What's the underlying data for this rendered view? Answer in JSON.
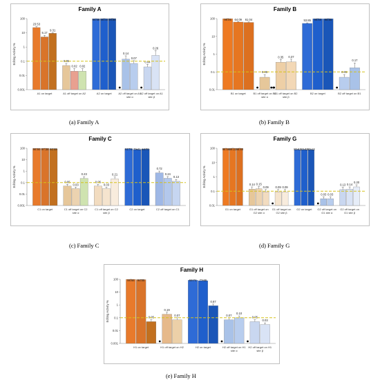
{
  "y_axis_title": "Editing Activity %",
  "y_ticks": [
    "100",
    "10",
    "1",
    "0.1",
    "0.01",
    "0.001"
  ],
  "chart_data": [
    {
      "type": "bar",
      "title": "Family A",
      "caption": "(a)    Family A",
      "ylabel": "Editing Activity %",
      "yscale": "log",
      "ylim": [
        0.001,
        100
      ],
      "ticks": [
        100,
        10,
        1,
        0.1,
        0.01,
        0.001
      ],
      "threshold": 0.1,
      "groups": [
        {
          "label": [
            "A1 on target"
          ],
          "bars": [
            {
              "value": 23.53,
              "label": "23.53",
              "color": "#e87a2b",
              "err": 4
            },
            {
              "value": 5.17,
              "label": "5.17",
              "color": "#d9742a",
              "err": 1.5
            },
            {
              "value": 9.31,
              "label": "9.31",
              "color": "#c2701f",
              "err": 1
            }
          ]
        },
        {
          "label": [
            "A1 off target on A2"
          ],
          "bars": [
            {
              "value": 0.05,
              "label": "0.05",
              "color": "#e6c79a",
              "err": 0.02
            },
            {
              "value": 0.02,
              "label": "0.02",
              "color": "#e8a090",
              "err": 0.01
            },
            {
              "value": 0.02,
              "label": "0.02",
              "color": "#cfe3b0",
              "err": 0.01
            }
          ]
        },
        {
          "label": [
            "A2 on target"
          ],
          "bars": [
            {
              "value": 96.69,
              "label": "96.69",
              "color": "#2e6bd6",
              "err": 2
            },
            {
              "value": 99.03,
              "label": "99.03",
              "color": "#1f5fcc",
              "err": 1
            },
            {
              "value": 99.86,
              "label": "99.86",
              "color": "#1a56b8",
              "err": 1
            }
          ]
        },
        {
          "label": [
            "A2 off target on A1",
            "site α"
          ],
          "bars": [
            {
              "value": 0.14,
              "label": "0.14",
              "color": "#a9c2e8",
              "err": 0.1
            },
            {
              "value": 0.07,
              "label": "0.07",
              "color": "#b8cdee",
              "err": 0.04
            }
          ],
          "marker": true
        },
        {
          "label": [
            "A2 off target on A1",
            "site β"
          ],
          "bars": [
            {
              "value": 0.04,
              "label": "0.04",
              "color": "#c9d7f0",
              "err": 0.02
            },
            {
              "value": 0.26,
              "label": "0.26",
              "color": "#d9e3f5",
              "err": 0.3
            }
          ],
          "marker": true
        }
      ]
    },
    {
      "type": "bar",
      "title": "Family B",
      "caption": "(b)    Family B",
      "ylabel": "Editing Activity %",
      "yscale": "log",
      "ylim": [
        0.01,
        100
      ],
      "ticks": [
        100,
        10,
        1,
        0.1,
        0.01
      ],
      "threshold": 0.1,
      "groups": [
        {
          "label": [
            "B1 on target"
          ],
          "bars": [
            {
              "value": 99.05,
              "label": "99.05",
              "color": "#ee7a22",
              "err": 1
            },
            {
              "value": 64.09,
              "label": "64.09",
              "color": "#e67621",
              "err": 4
            },
            {
              "value": 61.04,
              "label": "61.04",
              "color": "#dc7020",
              "err": 4
            }
          ]
        },
        {
          "label": [
            "B1 off target on B2",
            "site α"
          ],
          "bars": [
            {
              "value": 0.05,
              "label": "0.05",
              "color": "#e6c79a",
              "err": 0.02
            }
          ],
          "marker": true,
          "marker2": true
        },
        {
          "label": [
            "B1 off target on B2",
            "site β"
          ],
          "bars": [
            {
              "value": 0.35,
              "label": "0.35",
              "color": "#eecfa6",
              "err": 0.15
            },
            {
              "value": 0.37,
              "label": "0.37",
              "color": "#f3d8b6",
              "err": 0.15
            }
          ],
          "marker": true
        },
        {
          "label": [
            "B2 on target"
          ],
          "bars": [
            {
              "value": 53.85,
              "label": "53.85",
              "color": "#2e6bd6",
              "err": 4
            },
            {
              "value": 98.69,
              "label": "98.69",
              "color": "#1f5fcc",
              "err": 1
            },
            {
              "value": 98.65,
              "label": "98.65",
              "color": "#1a56b8",
              "err": 1
            }
          ]
        },
        {
          "label": [
            "B2 off target on B1"
          ],
          "bars": [
            {
              "value": 0.05,
              "label": "0.05",
              "color": "#b8cdee",
              "err": 0.02
            },
            {
              "value": 0.17,
              "label": "0.17",
              "color": "#a9c2e8",
              "err": 0.15
            }
          ],
          "marker": true
        }
      ]
    },
    {
      "type": "bar",
      "title": "Family C",
      "caption": "(c)    Family C",
      "ylabel": "Editing Activity %",
      "yscale": "log",
      "ylim": [
        0.001,
        100
      ],
      "ticks": [
        100,
        10,
        1,
        0.1,
        0.01,
        0.001
      ],
      "threshold": 0.1,
      "groups": [
        {
          "label": [
            "C1 on target"
          ],
          "bars": [
            {
              "value": 96.8,
              "label": "96.80",
              "color": "#e87a2b",
              "err": 1
            },
            {
              "value": 97.38,
              "label": "97.38",
              "color": "#d9742a",
              "err": 1
            },
            {
              "value": 91.49,
              "label": "91.49",
              "color": "#c2701f",
              "err": 2
            }
          ]
        },
        {
          "label": [
            "C1 off target on C2",
            "site α"
          ],
          "bars": [
            {
              "value": 0.05,
              "label": "0.05",
              "color": "#e6c79a",
              "err": 0.02
            },
            {
              "value": 0.03,
              "label": "0.03",
              "color": "#ecd3b0",
              "err": 0.01
            },
            {
              "value": 0.23,
              "label": "0.23",
              "color": "#cfe3b0",
              "err": 0.1
            }
          ]
        },
        {
          "label": [
            "C1 off target on C2",
            "site β"
          ],
          "bars": [
            {
              "value": 0.05,
              "label": "0.05",
              "color": "#f2dcc0",
              "err": 0.02
            },
            {
              "value": 0.03,
              "label": "0.03",
              "color": "#f5e4ce",
              "err": 0.01
            },
            {
              "value": 0.21,
              "label": "0.21",
              "color": "#f8ecdd",
              "err": 0.1
            }
          ]
        },
        {
          "label": [
            "C2 on target"
          ],
          "bars": [
            {
              "value": 91.74,
              "label": "91.74",
              "color": "#2e6bd6",
              "err": 2
            },
            {
              "value": 79.21,
              "label": "79.21",
              "color": "#1f5fcc",
              "err": 4
            },
            {
              "value": 84.7,
              "label": "84.70",
              "color": "#1a56b8",
              "err": 3
            }
          ]
        },
        {
          "label": [
            "C2 off target on C1"
          ],
          "bars": [
            {
              "value": 0.72,
              "label": "0.72",
              "color": "#9fb8e6",
              "err": 0.3
            },
            {
              "value": 0.24,
              "label": "0.24",
              "color": "#b3c8ec",
              "err": 0.1
            },
            {
              "value": 0.13,
              "label": "0.13",
              "color": "#c6d6f1",
              "err": 0.06
            }
          ]
        }
      ]
    },
    {
      "type": "bar",
      "title": "Family G",
      "caption": "(d)    Family G",
      "ylabel": "Editing Activity %",
      "yscale": "log",
      "ylim": [
        0.01,
        100
      ],
      "ticks": [
        100,
        10,
        1,
        0.1,
        0.01
      ],
      "threshold": 0.1,
      "groups": [
        {
          "label": [
            "G1 on target"
          ],
          "bars": [
            {
              "value": 98.56,
              "label": "98.56",
              "color": "#ee7a22",
              "err": 1
            },
            {
              "value": 99.22,
              "label": "99.22",
              "color": "#e67621",
              "err": 1
            },
            {
              "value": 98.8,
              "label": "98.80",
              "color": "#dc7020",
              "err": 1
            }
          ]
        },
        {
          "label": [
            "G1 off target on",
            "G2 site α"
          ],
          "bars": [
            {
              "value": 0.14,
              "label": "0.14",
              "color": "#e6c79a",
              "err": 0.06
            },
            {
              "value": 0.15,
              "label": "0.15",
              "color": "#ecd3b0",
              "err": 0.06
            },
            {
              "value": 0.09,
              "label": "0.09",
              "color": "#f2dcc0",
              "err": 0.04
            }
          ]
        },
        {
          "label": [
            "G1 off target on",
            "G2 site β"
          ],
          "bars": [
            {
              "value": 0.09,
              "label": "0.09",
              "color": "#f5e4ce",
              "err": 0.04
            },
            {
              "value": 0.09,
              "label": "0.09",
              "color": "#f8ecdd",
              "err": 0.04
            }
          ],
          "marker": true
        },
        {
          "label": [
            "G2 on target"
          ],
          "bars": [
            {
              "value": 80.61,
              "label": "80.61",
              "color": "#2e6bd6",
              "err": 3
            },
            {
              "value": 80.32,
              "label": "80.32",
              "color": "#1f5fcc",
              "err": 3
            },
            {
              "value": 80.13,
              "label": "80.13",
              "color": "#1a56b8",
              "err": 3
            }
          ]
        },
        {
          "label": [
            "G2 off target on",
            "G1 site α"
          ],
          "bars": [
            {
              "value": 0.03,
              "label": "0.03",
              "color": "#a9c2e8",
              "err": 0.01
            },
            {
              "value": 0.03,
              "label": "0.03",
              "color": "#b8cdee",
              "err": 0.01
            }
          ],
          "marker": true
        },
        {
          "label": [
            "G2 off target on",
            "G1 site β"
          ],
          "bars": [
            {
              "value": 0.13,
              "label": "0.13",
              "color": "#c9d7f0",
              "err": 0.06
            },
            {
              "value": 0.14,
              "label": "0.14",
              "color": "#d9e3f5",
              "err": 0.06
            },
            {
              "value": 0.2,
              "label": "0.20",
              "color": "#e6edf8",
              "err": 0.08
            }
          ]
        }
      ]
    },
    {
      "type": "bar",
      "title": "Family H",
      "caption": "(e)    Family H",
      "ylabel": "Editing Activity %",
      "yscale": "log",
      "ylim": [
        0.001,
        100
      ],
      "ticks": [
        100,
        10,
        1,
        0.1,
        0.01,
        0.001
      ],
      "threshold": 0.1,
      "groups": [
        {
          "label": [
            "H1 on target"
          ],
          "bars": [
            {
              "value": 98.66,
              "label": "98.66",
              "color": "#e87a2b",
              "err": 1
            },
            {
              "value": 94.05,
              "label": "94.05",
              "color": "#d9742a",
              "err": 2
            },
            {
              "value": 0.05,
              "label": "0.05",
              "color": "#c2701f",
              "err": 0.02
            }
          ]
        },
        {
          "label": [
            "H1 off target on H2"
          ],
          "bars": [
            {
              "value": 0.19,
              "label": "0.19",
              "color": "#e6b98a",
              "err": 0.08
            },
            {
              "value": 0.07,
              "label": "0.07",
              "color": "#ecd0a8",
              "err": 0.03
            }
          ],
          "marker": true
        },
        {
          "label": [
            "H2 on target"
          ],
          "bars": [
            {
              "value": 84.74,
              "label": "84.74",
              "color": "#2e6bd6",
              "err": 3
            },
            {
              "value": 77.99,
              "label": "77.99",
              "color": "#1f5fcc",
              "err": 3
            },
            {
              "value": 0.87,
              "label": "0.87",
              "color": "#1a56b8",
              "err": 0.3
            }
          ]
        },
        {
          "label": [
            "H2 off target on H1",
            "site α"
          ],
          "bars": [
            {
              "value": 0.07,
              "label": "0.07",
              "color": "#a9c2e8",
              "err": 0.03
            },
            {
              "value": 0.1,
              "label": "0.10",
              "color": "#b8cdee",
              "err": 0.04
            }
          ],
          "marker": true
        },
        {
          "label": [
            "H2 off target on H1",
            "site β"
          ],
          "bars": [
            {
              "value": 0.05,
              "label": "0.05",
              "color": "#c9d7f0",
              "err": 0.02
            },
            {
              "value": 0.03,
              "label": "0.03",
              "color": "#d9e3f5",
              "err": 0.01
            }
          ],
          "marker": true
        }
      ]
    }
  ]
}
